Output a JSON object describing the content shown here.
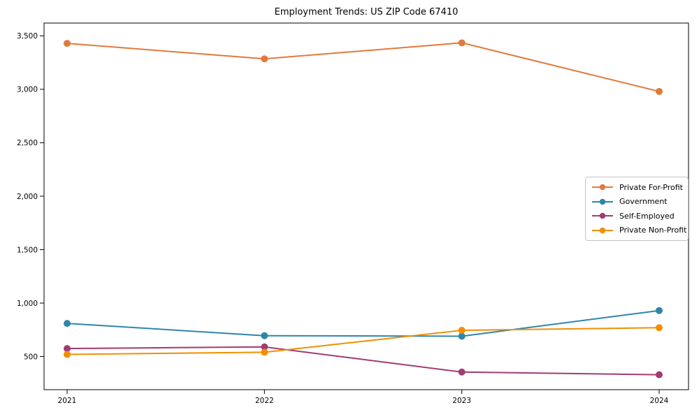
{
  "page": {
    "background": "#ffffff"
  },
  "chart_data": {
    "type": "line",
    "title": "Employment Trends: US ZIP Code 67410",
    "categories": [
      "2021",
      "2022",
      "2023",
      "2024"
    ],
    "series": [
      {
        "name": "Private For-Profit",
        "color": "#e2793b",
        "values": [
          3430,
          3285,
          3435,
          2980
        ]
      },
      {
        "name": "Government",
        "color": "#2e86ab",
        "values": [
          810,
          695,
          690,
          930
        ]
      },
      {
        "name": "Self-Employed",
        "color": "#a23b72",
        "values": [
          575,
          590,
          355,
          330
        ]
      },
      {
        "name": "Private Non-Profit",
        "color": "#f18f01",
        "values": [
          520,
          540,
          745,
          770
        ]
      }
    ],
    "xlabel": "",
    "ylabel": "",
    "ylim": [
      190,
      3620
    ],
    "yticks": [
      500,
      1000,
      1500,
      2000,
      2500,
      3000,
      3500
    ],
    "ytick_labels": [
      "500",
      "1,000",
      "1,500",
      "2,000",
      "2,500",
      "3,000",
      "3,500"
    ],
    "grid": false,
    "legend_position": "center right",
    "axis_color": "#000000",
    "tick_label_color": "#000000",
    "legend_border_color": "#c3c3c3",
    "line_width": 2,
    "marker": "circle",
    "marker_radius": 5
  }
}
